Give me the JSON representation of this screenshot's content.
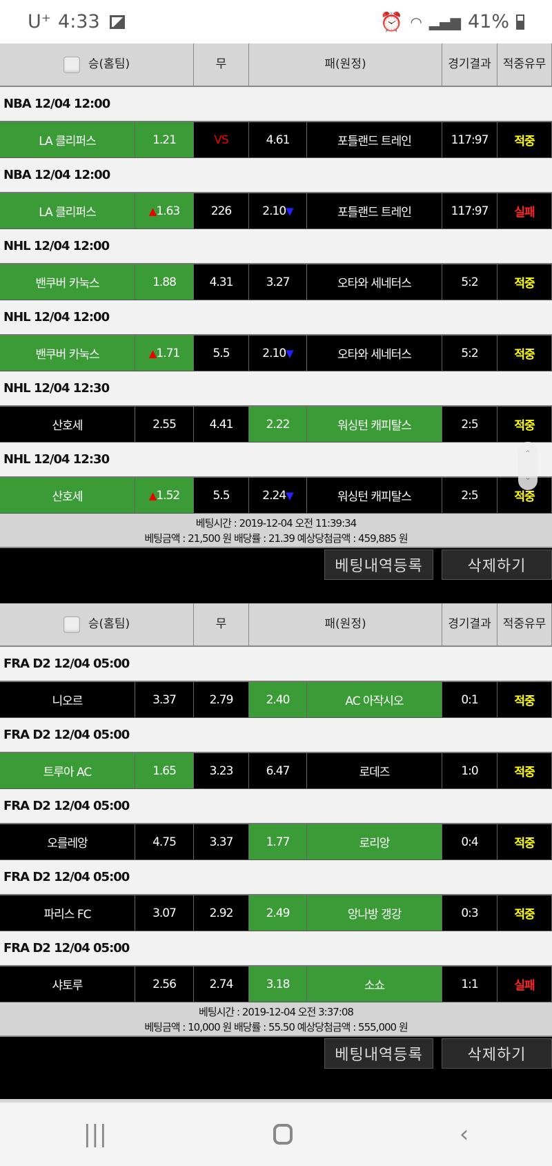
{
  "status_bar": {
    "carrier": "U⁺",
    "time": "4:33",
    "battery": "41%"
  },
  "columns": {
    "home": "승(홈팀)",
    "draw": "무",
    "away": "패(원정)",
    "result1": "경기",
    "result2": "결과",
    "hit1": "적중",
    "hit2": "유무"
  },
  "slips": [
    {
      "games": [
        {
          "league": "NBA 12/04 12:00",
          "home": "LA 클리퍼스",
          "home_odds": "1.21",
          "home_arrow": "",
          "draw": "VS",
          "away_odds": "4.61",
          "away_arrow": "",
          "away": "포틀랜드 트레인",
          "score": "117:97",
          "result": "적중",
          "pick": "home"
        },
        {
          "league": "NBA 12/04 12:00",
          "home": "LA 클리퍼스",
          "home_odds": "1.63",
          "home_arrow": "▲",
          "draw": "226",
          "away_odds": "2.10",
          "away_arrow": "▼",
          "away": "포틀랜드 트레인",
          "score": "117:97",
          "result": "실패",
          "pick": "home"
        },
        {
          "league": "NHL 12/04 12:00",
          "home": "밴쿠버 카눅스",
          "home_odds": "1.88",
          "home_arrow": "",
          "draw": "4.31",
          "away_odds": "3.27",
          "away_arrow": "",
          "away": "오타와 세네터스",
          "score": "5:2",
          "result": "적중",
          "pick": "home"
        },
        {
          "league": "NHL 12/04 12:00",
          "home": "밴쿠버 카눅스",
          "home_odds": "1.71",
          "home_arrow": "▲",
          "draw": "5.5",
          "away_odds": "2.10",
          "away_arrow": "▼",
          "away": "오타와 세네터스",
          "score": "5:2",
          "result": "적중",
          "pick": "home"
        },
        {
          "league": "NHL 12/04 12:30",
          "home": "산호세",
          "home_odds": "2.55",
          "home_arrow": "",
          "draw": "4.41",
          "away_odds": "2.22",
          "away_arrow": "",
          "away": "워싱턴 캐피탈스",
          "score": "2:5",
          "result": "적중",
          "pick": "away"
        },
        {
          "league": "NHL 12/04 12:30",
          "home": "산호세",
          "home_odds": "1.52",
          "home_arrow": "▲",
          "draw": "5.5",
          "away_odds": "2.24",
          "away_arrow": "▼",
          "away": "워싱턴 캐피탈스",
          "score": "2:5",
          "result": "적중",
          "pick": "home"
        }
      ],
      "bet_time": "베팅시간 : 2019-12-04 오전 11:39:34",
      "bet_summary": "베팅금액 : 21,500 원 배당률 : 21.39 예상당첨금액 : 459,885 원"
    },
    {
      "games": [
        {
          "league": "FRA D2 12/04 05:00",
          "home": "니오르",
          "home_odds": "3.37",
          "home_arrow": "",
          "draw": "2.79",
          "away_odds": "2.40",
          "away_arrow": "",
          "away": "AC 아작시오",
          "score": "0:1",
          "result": "적중",
          "pick": "away"
        },
        {
          "league": "FRA D2 12/04 05:00",
          "home": "트루아 AC",
          "home_odds": "1.65",
          "home_arrow": "",
          "draw": "3.23",
          "away_odds": "6.47",
          "away_arrow": "",
          "away": "로데즈",
          "score": "1:0",
          "result": "적중",
          "pick": "home"
        },
        {
          "league": "FRA D2 12/04 05:00",
          "home": "오를레앙",
          "home_odds": "4.75",
          "home_arrow": "",
          "draw": "3.37",
          "away_odds": "1.77",
          "away_arrow": "",
          "away": "로리앙",
          "score": "0:4",
          "result": "적중",
          "pick": "away"
        },
        {
          "league": "FRA D2 12/04 05:00",
          "home": "파리스 FC",
          "home_odds": "3.07",
          "home_arrow": "",
          "draw": "2.92",
          "away_odds": "2.49",
          "away_arrow": "",
          "away": "앙나방 갱강",
          "score": "0:3",
          "result": "적중",
          "pick": "away"
        },
        {
          "league": "FRA D2 12/04 05:00",
          "home": "샤토루",
          "home_odds": "2.56",
          "home_arrow": "",
          "draw": "2.74",
          "away_odds": "3.18",
          "away_arrow": "",
          "away": "소쇼",
          "score": "1:1",
          "result": "실패",
          "pick": "away"
        }
      ],
      "bet_time": "베팅시간 : 2019-12-04 오전 3:37:08",
      "bet_summary": "베팅금액 : 10,000 원 배당률 : 55.50 예상당첨금액 : 555,000 원"
    }
  ],
  "buttons": {
    "register": "베팅내역등록",
    "delete": "삭제하기"
  },
  "colors": {
    "pick": "#3a9b37",
    "hit": "#ffff00",
    "miss": "#ff2222"
  }
}
